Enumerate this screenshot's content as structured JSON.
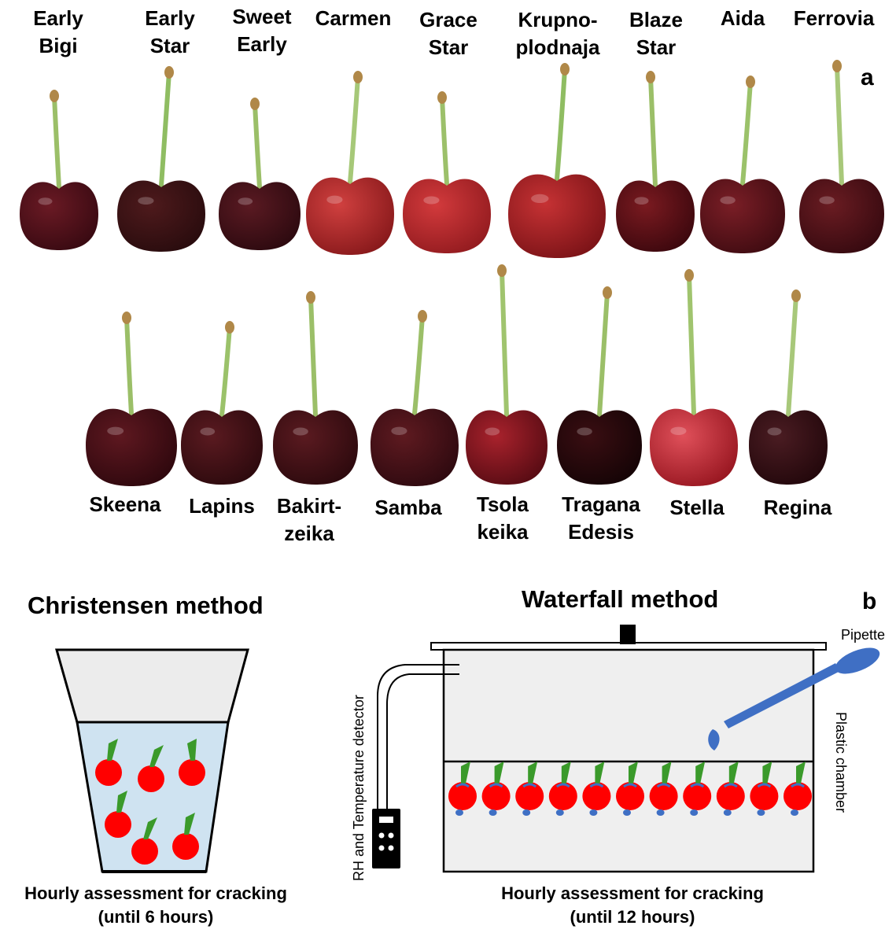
{
  "panel_a": {
    "letter": "a",
    "top_row": [
      {
        "line1": "Early",
        "line2": "Bigi",
        "stem": "#9bbf68",
        "c1": "#6a1a24",
        "c2": "#3a0a12"
      },
      {
        "line1": "Early",
        "line2": "Star",
        "stem": "#8fbd62",
        "c1": "#4e1a1c",
        "c2": "#2a0c0e"
      },
      {
        "line1": "Sweet",
        "line2": "Early",
        "stem": "#9bbf68",
        "c1": "#5a1a22",
        "c2": "#2e0a10"
      },
      {
        "line1": "Carmen",
        "line2": "",
        "stem": "#a6c878",
        "c1": "#d0403f",
        "c2": "#8a1a1c"
      },
      {
        "line1": "Grace",
        "line2": "Star",
        "stem": "#9cc06a",
        "c1": "#d23a3c",
        "c2": "#951c20"
      },
      {
        "line1": "Krupno-",
        "line2": "plodnaja",
        "stem": "#8fbd62",
        "c1": "#c63234",
        "c2": "#7e1418"
      },
      {
        "line1": "Blaze",
        "line2": "Star",
        "stem": "#9bbf68",
        "c1": "#7a1a20",
        "c2": "#3e080e"
      },
      {
        "line1": "Aida",
        "line2": "",
        "stem": "#9bc26a",
        "c1": "#7a1e26",
        "c2": "#420c12"
      },
      {
        "line1": "Ferrovia",
        "line2": "",
        "stem": "#a8c87a",
        "c1": "#6a1c22",
        "c2": "#380a10"
      }
    ],
    "bottom_row": [
      {
        "line1": "Skeena",
        "line2": "",
        "stem": "#9bbf68",
        "c1": "#5e1820",
        "c2": "#30080e"
      },
      {
        "line1": "Lapins",
        "line2": "",
        "stem": "#9bc26a",
        "c1": "#5a1a20",
        "c2": "#2e0a0e"
      },
      {
        "line1": "Bakirt-",
        "line2": "zeika",
        "stem": "#9bbf68",
        "c1": "#5a1a20",
        "c2": "#2e0a0e"
      },
      {
        "line1": "Samba",
        "line2": "",
        "stem": "#9bbf68",
        "c1": "#5e1a20",
        "c2": "#300a10"
      },
      {
        "line1": "Tsola",
        "line2": "keika",
        "stem": "#a0c46e",
        "c1": "#a8222c",
        "c2": "#5a0c14"
      },
      {
        "line1": "Tragana",
        "line2": "Edesis",
        "stem": "#9bbf68",
        "c1": "#3a0e12",
        "c2": "#160406"
      },
      {
        "line1": "Stella",
        "line2": "",
        "stem": "#a0c46e",
        "c1": "#e0505a",
        "c2": "#9a1822"
      },
      {
        "line1": "Regina",
        "line2": "",
        "stem": "#a8c87a",
        "c1": "#4a1c22",
        "c2": "#24080c"
      }
    ]
  },
  "panel_b": {
    "letter": "b",
    "christensen": {
      "title": "Christensen method",
      "caption_line1": "Hourly assessment for cracking",
      "caption_line2": "(until 6 hours)",
      "water_color": "#cfe3f1",
      "cherry_color": "#ff0000",
      "stem_color": "#3a9a2a"
    },
    "waterfall": {
      "title": "Waterfall method",
      "pipette_label": "Pipette",
      "chamber_label": "Plastic chamber",
      "detector_label": "RH and Temperature detector",
      "caption_line1": "Hourly assessment for cracking",
      "caption_line2": "(until 12 hours)",
      "pipette_color": "#3f6fc4",
      "cherry_color": "#ff0000",
      "drop_color": "#3f6fc4",
      "stem_color": "#3a9a2a",
      "chamber_fill": "#efefef"
    }
  }
}
